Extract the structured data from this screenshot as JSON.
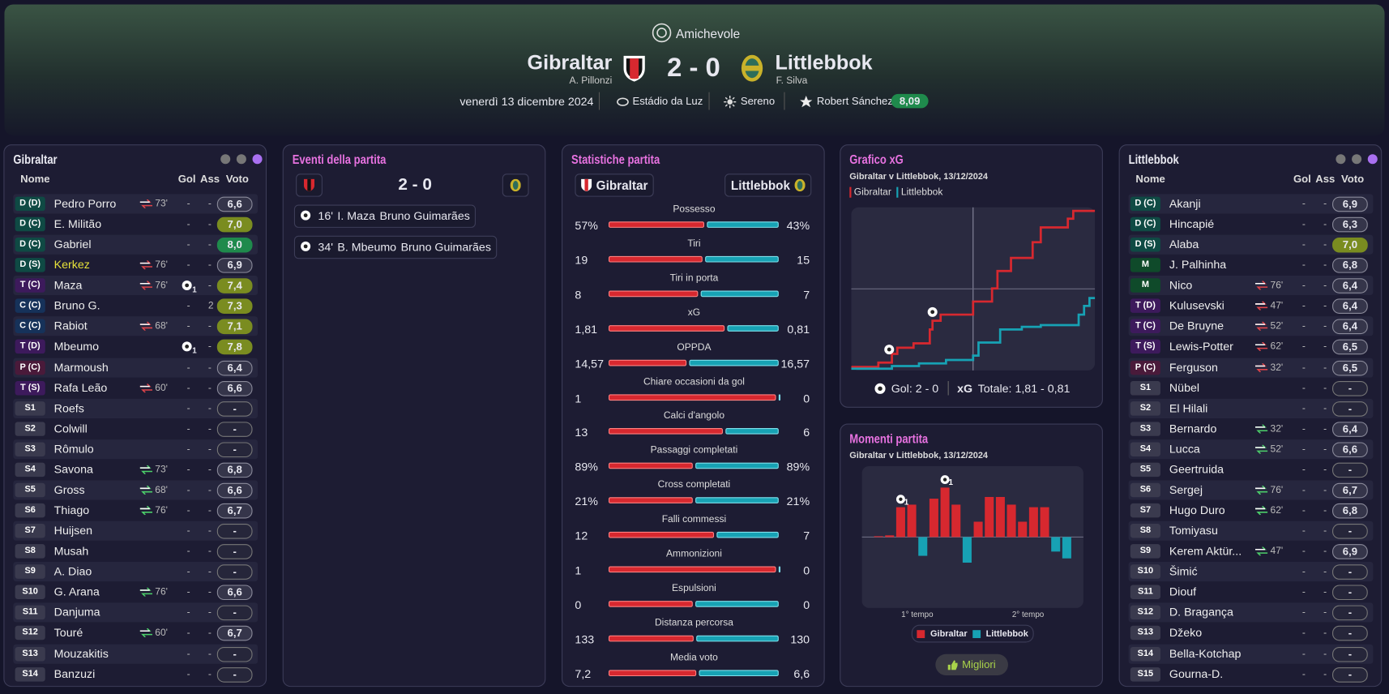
{
  "header": {
    "competition": "Amichevole",
    "home": {
      "name": "Gibraltar",
      "manager": "A. Pillonzi"
    },
    "score": "2 - 0",
    "away": {
      "name": "Littlebbok",
      "manager": "F. Silva"
    },
    "date": "venerdì 13 dicembre 2024",
    "stadium": "Estádio da Luz",
    "weather": "Sereno",
    "referee": "Robert Sánchez",
    "referee_rating": "8,09"
  },
  "home_lineup": {
    "title": "Gibraltar",
    "columns": [
      "Nome",
      "Gol",
      "Ass",
      "Voto"
    ],
    "rows": [
      {
        "pos": "D (D)",
        "name": "Pedro Porro",
        "sub_out": "73'",
        "gol": "-",
        "ass": "-",
        "voto": "6,6"
      },
      {
        "pos": "D (C)",
        "name": "E. Militão",
        "gol": "-",
        "ass": "-",
        "voto": "7,0"
      },
      {
        "pos": "D (C)",
        "name": "Gabriel",
        "gol": "-",
        "ass": "-",
        "voto": "8,0"
      },
      {
        "pos": "D (S)",
        "name": "Kerkez",
        "name_color": "#e6e23a",
        "sub_out": "76'",
        "gol": "-",
        "ass": "-",
        "voto": "6,9"
      },
      {
        "pos": "T (C)",
        "name": "Maza",
        "sub_out": "76'",
        "gol": "1",
        "ass": "-",
        "voto": "7,4"
      },
      {
        "pos": "C (C)",
        "name": "Bruno G.",
        "gol": "-",
        "ass": "2",
        "voto": "7,3"
      },
      {
        "pos": "C (C)",
        "name": "Rabiot",
        "sub_out": "68'",
        "gol": "-",
        "ass": "-",
        "voto": "7,1"
      },
      {
        "pos": "T (D)",
        "name": "Mbeumo",
        "gol": "1",
        "ass": "-",
        "voto": "7,8"
      },
      {
        "pos": "P (C)",
        "name": "Marmoush",
        "gol": "-",
        "ass": "-",
        "voto": "6,4"
      },
      {
        "pos": "T (S)",
        "name": "Rafa Leão",
        "sub_out": "60'",
        "gol": "-",
        "ass": "-",
        "voto": "6,6"
      },
      {
        "pos": "S1",
        "name": "Roefs",
        "gol": "-",
        "ass": "-",
        "voto": "-"
      },
      {
        "pos": "S2",
        "name": "Colwill",
        "gol": "-",
        "ass": "-",
        "voto": "-"
      },
      {
        "pos": "S3",
        "name": "Rômulo",
        "gol": "-",
        "ass": "-",
        "voto": "-"
      },
      {
        "pos": "S4",
        "name": "Savona",
        "sub_in": "73'",
        "gol": "-",
        "ass": "-",
        "voto": "6,8"
      },
      {
        "pos": "S5",
        "name": "Gross",
        "sub_in": "68'",
        "gol": "-",
        "ass": "-",
        "voto": "6,6"
      },
      {
        "pos": "S6",
        "name": "Thiago",
        "sub_in": "76'",
        "gol": "-",
        "ass": "-",
        "voto": "6,7"
      },
      {
        "pos": "S7",
        "name": "Huijsen",
        "gol": "-",
        "ass": "-",
        "voto": "-"
      },
      {
        "pos": "S8",
        "name": "Musah",
        "gol": "-",
        "ass": "-",
        "voto": "-"
      },
      {
        "pos": "S9",
        "name": "A. Diao",
        "gol": "-",
        "ass": "-",
        "voto": "-"
      },
      {
        "pos": "S10",
        "name": "G. Arana",
        "sub_in": "76'",
        "gol": "-",
        "ass": "-",
        "voto": "6,6"
      },
      {
        "pos": "S11",
        "name": "Danjuma",
        "gol": "-",
        "ass": "-",
        "voto": "-"
      },
      {
        "pos": "S12",
        "name": "Touré",
        "sub_in": "60'",
        "gol": "-",
        "ass": "-",
        "voto": "6,7"
      },
      {
        "pos": "S13",
        "name": "Mouzakitis",
        "gol": "-",
        "ass": "-",
        "voto": "-"
      },
      {
        "pos": "S14",
        "name": "Banzuzi",
        "gol": "-",
        "ass": "-",
        "voto": "-"
      }
    ]
  },
  "events": {
    "title": "Eventi della partita",
    "score": "2 - 0",
    "items": [
      {
        "minute": "16'",
        "player": "I. Maza",
        "assist": "Bruno Guimarães"
      },
      {
        "minute": "34'",
        "player": "B. Mbeumo",
        "assist": "Bruno Guimarães"
      }
    ]
  },
  "stats": {
    "title": "Statistiche partita",
    "home": "Gibraltar",
    "away": "Littlebbok",
    "home_color": "#d7282f",
    "away_color": "#17a2b4",
    "rows": [
      {
        "label": "Possesso",
        "values": [
          57,
          43
        ],
        "value_labels": [
          "57%",
          "43%"
        ]
      },
      {
        "label": "Tiri",
        "values": [
          19,
          15
        ]
      },
      {
        "label": "Tiri in porta",
        "values": [
          8,
          7
        ]
      },
      {
        "label": "xG",
        "values": [
          1.81,
          0.81
        ],
        "value_labels": [
          "1,81",
          "0,81"
        ]
      },
      {
        "label": "OPPDA",
        "values": [
          14.57,
          16.57
        ],
        "value_labels": [
          "14,57",
          "16,57"
        ]
      },
      {
        "label": "Chiare occasioni da gol",
        "values": [
          1,
          0
        ]
      },
      {
        "label": "Calci d'angolo",
        "values": [
          13,
          6
        ]
      },
      {
        "label": "Passaggi completati",
        "values": [
          89,
          89
        ],
        "value_labels": [
          "89%",
          "89%"
        ]
      },
      {
        "label": "Cross completati",
        "values": [
          21,
          21
        ],
        "value_labels": [
          "21%",
          "21%"
        ]
      },
      {
        "label": "Falli commessi",
        "values": [
          12,
          7
        ]
      },
      {
        "label": "Ammonizioni",
        "values": [
          1,
          0
        ]
      },
      {
        "label": "Espulsioni",
        "values": [
          0,
          0
        ]
      },
      {
        "label": "Distanza percorsa",
        "values": [
          133,
          130
        ]
      },
      {
        "label": "Media voto",
        "values": [
          7.2,
          6.6
        ],
        "value_labels": [
          "7,2",
          "6,6"
        ]
      }
    ]
  },
  "xg_chart": {
    "type": "line",
    "title": "Grafico xG",
    "subtitle": "Gibraltar v Littlebbok, 13/12/2024",
    "xlim": [
      0,
      90
    ],
    "ylim": [
      0,
      1.85
    ],
    "series": [
      {
        "name": "Gibraltar",
        "color": "#d7282f",
        "x": [
          0,
          10,
          15,
          17,
          23,
          29,
          30,
          33,
          45,
          52,
          54,
          59,
          67,
          70,
          80,
          82,
          90
        ],
        "values": [
          0.02,
          0.07,
          0.17,
          0.24,
          0.29,
          0.45,
          0.55,
          0.62,
          0.77,
          0.92,
          1.12,
          1.27,
          1.45,
          1.62,
          1.72,
          1.81,
          1.81
        ]
      },
      {
        "name": "Littlebbok",
        "color": "#17a2b4",
        "x": [
          0,
          15,
          25,
          35,
          45,
          47,
          55,
          63,
          70,
          84,
          86,
          88,
          90
        ],
        "values": [
          0,
          0.03,
          0.06,
          0.1,
          0.15,
          0.3,
          0.45,
          0.48,
          0.5,
          0.62,
          0.72,
          0.81,
          0.81
        ]
      }
    ],
    "goals": [
      {
        "x": 14,
        "y": 0.22
      },
      {
        "x": 30,
        "y": 0.65
      }
    ],
    "footer": {
      "goals": "Gol: 2 - 0",
      "xg_label": "xG",
      "xg_total": "Totale: 1,81 - 0,81"
    }
  },
  "momentum_chart": {
    "type": "bar",
    "title": "Momenti partita",
    "subtitle": "Gibraltar v Littlebbok, 13/12/2024",
    "ylim": [
      -80,
      80
    ],
    "series": [
      {
        "name": "Gibraltar",
        "color": "#d7282f",
        "values": [
          0,
          1,
          2,
          35,
          38,
          0,
          45,
          58,
          38,
          0,
          18,
          47,
          47,
          38,
          18,
          35,
          35,
          0,
          0,
          0
        ]
      },
      {
        "name": "Littlebbok",
        "color": "#17a2b4",
        "values": [
          0,
          0,
          0,
          0,
          0,
          -22,
          0,
          0,
          0,
          -30,
          0,
          0,
          0,
          0,
          0,
          0,
          0,
          -17,
          -25,
          0
        ]
      }
    ],
    "x_labels": [
      "1° tempo",
      "2° tempo"
    ],
    "goals": [
      {
        "index": 3,
        "label": "1"
      },
      {
        "index": 7,
        "label": "1"
      }
    ],
    "button": "Migliori"
  },
  "away_lineup": {
    "title": "Littlebbok",
    "columns": [
      "Nome",
      "Gol",
      "Ass",
      "Voto"
    ],
    "rows": [
      {
        "pos": "D (C)",
        "name": "Akanji",
        "gol": "-",
        "ass": "-",
        "voto": "6,9"
      },
      {
        "pos": "D (C)",
        "name": "Hincapié",
        "gol": "-",
        "ass": "-",
        "voto": "6,3"
      },
      {
        "pos": "D (S)",
        "name": "Alaba",
        "gol": "-",
        "ass": "-",
        "voto": "7,0"
      },
      {
        "pos": "M",
        "name": "J. Palhinha",
        "gol": "-",
        "ass": "-",
        "voto": "6,8"
      },
      {
        "pos": "M",
        "name": "Nico",
        "sub_out": "76'",
        "gol": "-",
        "ass": "-",
        "voto": "6,4"
      },
      {
        "pos": "T (D)",
        "name": "Kulusevski",
        "sub_out": "47'",
        "gol": "-",
        "ass": "-",
        "voto": "6,4"
      },
      {
        "pos": "T (C)",
        "name": "De Bruyne",
        "sub_out": "52'",
        "gol": "-",
        "ass": "-",
        "voto": "6,4"
      },
      {
        "pos": "T (S)",
        "name": "Lewis-Potter",
        "sub_out": "62'",
        "gol": "-",
        "ass": "-",
        "voto": "6,5"
      },
      {
        "pos": "P (C)",
        "name": "Ferguson",
        "sub_out": "32'",
        "gol": "-",
        "ass": "-",
        "voto": "6,5"
      },
      {
        "pos": "S1",
        "name": "Nübel",
        "gol": "-",
        "ass": "-",
        "voto": "-"
      },
      {
        "pos": "S2",
        "name": "El Hilali",
        "gol": "-",
        "ass": "-",
        "voto": "-"
      },
      {
        "pos": "S3",
        "name": "Bernardo",
        "sub_in": "32'",
        "gol": "-",
        "ass": "-",
        "voto": "6,4"
      },
      {
        "pos": "S4",
        "name": "Lucca",
        "sub_in": "52'",
        "gol": "-",
        "ass": "-",
        "voto": "6,6"
      },
      {
        "pos": "S5",
        "name": "Geertruida",
        "gol": "-",
        "ass": "-",
        "voto": "-"
      },
      {
        "pos": "S6",
        "name": "Sergej",
        "sub_in": "76'",
        "gol": "-",
        "ass": "-",
        "voto": "6,7"
      },
      {
        "pos": "S7",
        "name": "Hugo Duro",
        "sub_in": "62'",
        "gol": "-",
        "ass": "-",
        "voto": "6,8"
      },
      {
        "pos": "S8",
        "name": "Tomiyasu",
        "gol": "-",
        "ass": "-",
        "voto": "-"
      },
      {
        "pos": "S9",
        "name": "Kerem Aktür...",
        "sub_in": "47'",
        "gol": "-",
        "ass": "-",
        "voto": "6,9"
      },
      {
        "pos": "S10",
        "name": "Šimić",
        "gol": "-",
        "ass": "-",
        "voto": "-"
      },
      {
        "pos": "S11",
        "name": "Diouf",
        "gol": "-",
        "ass": "-",
        "voto": "-"
      },
      {
        "pos": "S12",
        "name": "D. Bragança",
        "gol": "-",
        "ass": "-",
        "voto": "-"
      },
      {
        "pos": "S13",
        "name": "Džeko",
        "gol": "-",
        "ass": "-",
        "voto": "-"
      },
      {
        "pos": "S14",
        "name": "Bella-Kotchap",
        "gol": "-",
        "ass": "-",
        "voto": "-"
      },
      {
        "pos": "S15",
        "name": "Gourna-D.",
        "gol": "-",
        "ass": "-",
        "voto": "-"
      }
    ]
  }
}
